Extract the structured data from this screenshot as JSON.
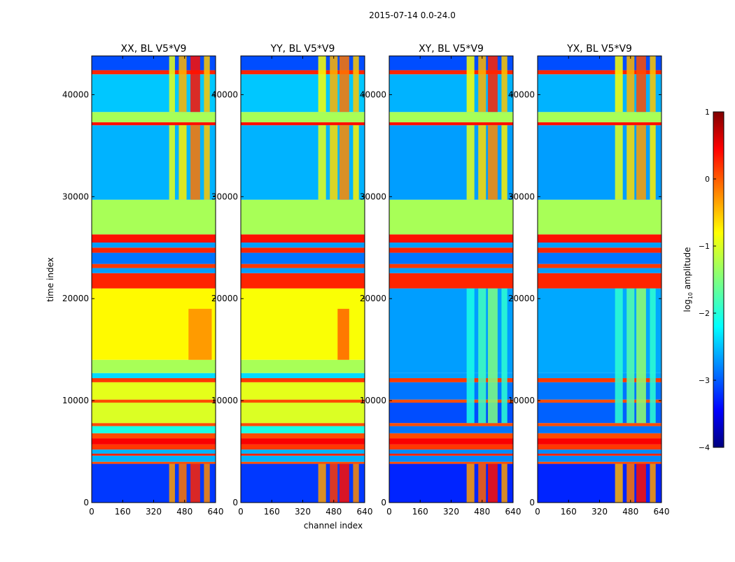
{
  "chart_data": {
    "type": "heatmap",
    "title": "2015-07-14 0.0-24.0",
    "xlabel": "channel index",
    "ylabel": "time index",
    "xlim": [
      0,
      640
    ],
    "ylim": [
      0,
      43800
    ],
    "xticks": [
      0,
      160,
      320,
      480,
      640
    ],
    "yticks": [
      0,
      10000,
      20000,
      30000,
      40000
    ],
    "colorbar": {
      "label_main": "log",
      "label_sub": "10",
      "label_rest": " amplitude",
      "range": [
        -4,
        1
      ],
      "ticks": [
        1,
        0,
        -1,
        -2,
        -3,
        -4
      ],
      "colormap": "jet"
    },
    "panels": [
      {
        "title": "XX, BL V5*V9",
        "bands": [
          [
            0,
            3800,
            -3.1
          ],
          [
            3800,
            4000,
            0
          ],
          [
            4000,
            4600,
            -2.5
          ],
          [
            4600,
            4800,
            0.2
          ],
          [
            4800,
            5200,
            -2.5
          ],
          [
            5200,
            5700,
            0.1
          ],
          [
            5700,
            6300,
            0.4
          ],
          [
            6300,
            6800,
            0
          ],
          [
            6800,
            7500,
            -2.0
          ],
          [
            7500,
            7800,
            0
          ],
          [
            7800,
            9800,
            -1.05
          ],
          [
            9800,
            10100,
            0
          ],
          [
            10100,
            11800,
            -1.0
          ],
          [
            11800,
            12200,
            0.1
          ],
          [
            12200,
            12700,
            -2.3
          ],
          [
            12700,
            14000,
            -1.3
          ],
          [
            14000,
            21000,
            -0.85
          ],
          [
            21000,
            22500,
            0.2
          ],
          [
            22500,
            23000,
            -2.6
          ],
          [
            23000,
            23400,
            0.1
          ],
          [
            23400,
            24500,
            -2.8
          ],
          [
            24500,
            25000,
            0.2
          ],
          [
            25000,
            25500,
            -2.6
          ],
          [
            25500,
            26300,
            0.3
          ],
          [
            26300,
            29700,
            -1.3
          ],
          [
            29700,
            37000,
            -2.5
          ],
          [
            37000,
            37300,
            0.3
          ],
          [
            37300,
            38300,
            -1.3
          ],
          [
            38300,
            42000,
            -2.4
          ],
          [
            42000,
            42400,
            0.2
          ],
          [
            42400,
            43800,
            -3.0
          ]
        ],
        "channel_bands": [
          [
            400,
            430,
            0,
            3800,
            -0.4
          ],
          [
            450,
            490,
            0,
            3800,
            -0.2
          ],
          [
            510,
            560,
            0,
            3800,
            0.2
          ],
          [
            580,
            610,
            0,
            3800,
            -0.3
          ],
          [
            400,
            430,
            29700,
            37000,
            -1.0
          ],
          [
            450,
            490,
            29700,
            37000,
            -0.8
          ],
          [
            510,
            560,
            29700,
            37000,
            -0.2
          ],
          [
            580,
            610,
            29700,
            37000,
            -0.6
          ],
          [
            400,
            430,
            38300,
            43800,
            -1.0
          ],
          [
            450,
            490,
            38300,
            43800,
            -0.5
          ],
          [
            510,
            560,
            38300,
            43800,
            0.3
          ],
          [
            580,
            610,
            38300,
            43800,
            -0.6
          ],
          [
            500,
            620,
            14000,
            19000,
            -0.3
          ]
        ]
      },
      {
        "title": "YY, BL V5*V9",
        "bands": [
          [
            0,
            3800,
            -3.1
          ],
          [
            3800,
            4000,
            0
          ],
          [
            4000,
            4600,
            -2.5
          ],
          [
            4600,
            4800,
            0.2
          ],
          [
            4800,
            5200,
            -2.5
          ],
          [
            5200,
            5700,
            0.1
          ],
          [
            5700,
            6300,
            0.4
          ],
          [
            6300,
            6800,
            0
          ],
          [
            6800,
            7500,
            -2.0
          ],
          [
            7500,
            7800,
            0
          ],
          [
            7800,
            9800,
            -1.05
          ],
          [
            9800,
            10100,
            0
          ],
          [
            10100,
            11800,
            -1.0
          ],
          [
            11800,
            12200,
            0.1
          ],
          [
            12200,
            12700,
            -2.3
          ],
          [
            12700,
            14000,
            -1.3
          ],
          [
            14000,
            21000,
            -0.9
          ],
          [
            21000,
            22500,
            0.2
          ],
          [
            22500,
            23000,
            -2.6
          ],
          [
            23000,
            23400,
            0.1
          ],
          [
            23400,
            24500,
            -2.8
          ],
          [
            24500,
            25000,
            0.2
          ],
          [
            25000,
            25500,
            -2.6
          ],
          [
            25500,
            26300,
            0.3
          ],
          [
            26300,
            29700,
            -1.3
          ],
          [
            29700,
            37000,
            -2.5
          ],
          [
            37000,
            37300,
            0.3
          ],
          [
            37300,
            38300,
            -1.3
          ],
          [
            38300,
            42000,
            -2.4
          ],
          [
            42000,
            42400,
            0.2
          ],
          [
            42400,
            43800,
            -3.0
          ]
        ],
        "channel_bands": [
          [
            400,
            440,
            0,
            3800,
            -0.4
          ],
          [
            460,
            500,
            0,
            3800,
            0.1
          ],
          [
            510,
            560,
            0,
            3800,
            0.3
          ],
          [
            580,
            610,
            0,
            3800,
            -0.3
          ],
          [
            400,
            440,
            29700,
            37000,
            -1.0
          ],
          [
            460,
            500,
            29700,
            37000,
            -0.7
          ],
          [
            510,
            560,
            29700,
            37000,
            -0.3
          ],
          [
            580,
            610,
            29700,
            37000,
            -0.8
          ],
          [
            400,
            440,
            38300,
            43800,
            -0.9
          ],
          [
            460,
            500,
            38300,
            43800,
            -0.5
          ],
          [
            510,
            560,
            38300,
            43800,
            -0.2
          ],
          [
            580,
            610,
            38300,
            43800,
            -0.6
          ],
          [
            500,
            560,
            14000,
            19000,
            -0.1
          ]
        ]
      },
      {
        "title": "XY, BL V5*V9",
        "bands": [
          [
            0,
            3800,
            -3.2
          ],
          [
            3800,
            4000,
            0
          ],
          [
            4000,
            4600,
            -2.7
          ],
          [
            4600,
            4800,
            0.2
          ],
          [
            4800,
            5200,
            -2.7
          ],
          [
            5200,
            5700,
            0.1
          ],
          [
            5700,
            6300,
            0.4
          ],
          [
            6300,
            6800,
            0
          ],
          [
            6800,
            7500,
            -2.8
          ],
          [
            7500,
            7800,
            0
          ],
          [
            7800,
            9800,
            -3.0
          ],
          [
            9800,
            10100,
            0
          ],
          [
            10100,
            11800,
            -2.8
          ],
          [
            11800,
            12200,
            0.1
          ],
          [
            12200,
            12700,
            -2.6
          ],
          [
            12700,
            21000,
            -2.6
          ],
          [
            21000,
            22500,
            0.2
          ],
          [
            22500,
            23000,
            -2.6
          ],
          [
            23000,
            23400,
            0.1
          ],
          [
            23400,
            24500,
            -2.8
          ],
          [
            24500,
            25000,
            0.2
          ],
          [
            25000,
            25500,
            -2.6
          ],
          [
            25500,
            26300,
            0.3
          ],
          [
            26300,
            29700,
            -1.3
          ],
          [
            29700,
            37000,
            -2.6
          ],
          [
            37000,
            37300,
            0.3
          ],
          [
            37300,
            38300,
            -1.3
          ],
          [
            38300,
            42000,
            -2.5
          ],
          [
            42000,
            42400,
            0.2
          ],
          [
            42400,
            43800,
            -3.0
          ]
        ],
        "channel_bands": [
          [
            400,
            440,
            0,
            3800,
            -0.4
          ],
          [
            460,
            500,
            0,
            3800,
            -0.1
          ],
          [
            510,
            560,
            0,
            3800,
            0.3
          ],
          [
            580,
            610,
            0,
            3800,
            -0.4
          ],
          [
            400,
            440,
            7800,
            21000,
            -2.0
          ],
          [
            460,
            500,
            7800,
            21000,
            -1.8
          ],
          [
            510,
            560,
            7800,
            21000,
            -1.5
          ],
          [
            580,
            610,
            7800,
            21000,
            -1.9
          ],
          [
            400,
            440,
            29700,
            37000,
            -1.0
          ],
          [
            460,
            500,
            29700,
            37000,
            -0.7
          ],
          [
            510,
            560,
            29700,
            37000,
            -0.3
          ],
          [
            580,
            610,
            29700,
            37000,
            -0.8
          ],
          [
            400,
            440,
            38300,
            43800,
            -0.9
          ],
          [
            460,
            500,
            38300,
            43800,
            -0.5
          ],
          [
            510,
            560,
            38300,
            43800,
            0.2
          ],
          [
            580,
            610,
            38300,
            43800,
            -0.6
          ]
        ]
      },
      {
        "title": "YX, BL V5*V9",
        "bands": [
          [
            0,
            3800,
            -3.2
          ],
          [
            3800,
            4000,
            0
          ],
          [
            4000,
            4600,
            -2.7
          ],
          [
            4600,
            4800,
            0.2
          ],
          [
            4800,
            5200,
            -2.7
          ],
          [
            5200,
            5700,
            0.1
          ],
          [
            5700,
            6300,
            0.4
          ],
          [
            6300,
            6800,
            0
          ],
          [
            6800,
            7500,
            -2.8
          ],
          [
            7500,
            7800,
            0
          ],
          [
            7800,
            9800,
            -2.9
          ],
          [
            9800,
            10100,
            0
          ],
          [
            10100,
            11800,
            -2.8
          ],
          [
            11800,
            12200,
            0.1
          ],
          [
            12200,
            12700,
            -2.6
          ],
          [
            12700,
            21000,
            -2.55
          ],
          [
            21000,
            22500,
            0.2
          ],
          [
            22500,
            23000,
            -2.6
          ],
          [
            23000,
            23400,
            0.1
          ],
          [
            23400,
            24500,
            -2.8
          ],
          [
            24500,
            25000,
            0.2
          ],
          [
            25000,
            25500,
            -2.6
          ],
          [
            25500,
            26300,
            0.3
          ],
          [
            26300,
            29700,
            -1.3
          ],
          [
            29700,
            37000,
            -2.6
          ],
          [
            37000,
            37300,
            0.3
          ],
          [
            37300,
            38300,
            -1.3
          ],
          [
            38300,
            42000,
            -2.5
          ],
          [
            42000,
            42400,
            0.2
          ],
          [
            42400,
            43800,
            -3.0
          ]
        ],
        "channel_bands": [
          [
            400,
            440,
            0,
            3800,
            -0.5
          ],
          [
            460,
            500,
            0,
            3800,
            -0.2
          ],
          [
            510,
            560,
            0,
            3800,
            0.3
          ],
          [
            580,
            610,
            0,
            3800,
            -0.4
          ],
          [
            400,
            440,
            7800,
            21000,
            -1.9
          ],
          [
            460,
            500,
            7800,
            21000,
            -1.7
          ],
          [
            510,
            560,
            7800,
            21000,
            -1.4
          ],
          [
            580,
            610,
            7800,
            21000,
            -1.9
          ],
          [
            400,
            440,
            29700,
            37000,
            -1.0
          ],
          [
            460,
            500,
            29700,
            37000,
            -0.7
          ],
          [
            510,
            560,
            29700,
            37000,
            -0.4
          ],
          [
            580,
            610,
            29700,
            37000,
            -0.8
          ],
          [
            400,
            440,
            38300,
            43800,
            -0.9
          ],
          [
            460,
            500,
            38300,
            43800,
            -0.5
          ],
          [
            510,
            560,
            38300,
            43800,
            0.0
          ],
          [
            580,
            610,
            38300,
            43800,
            -0.6
          ]
        ]
      }
    ]
  }
}
